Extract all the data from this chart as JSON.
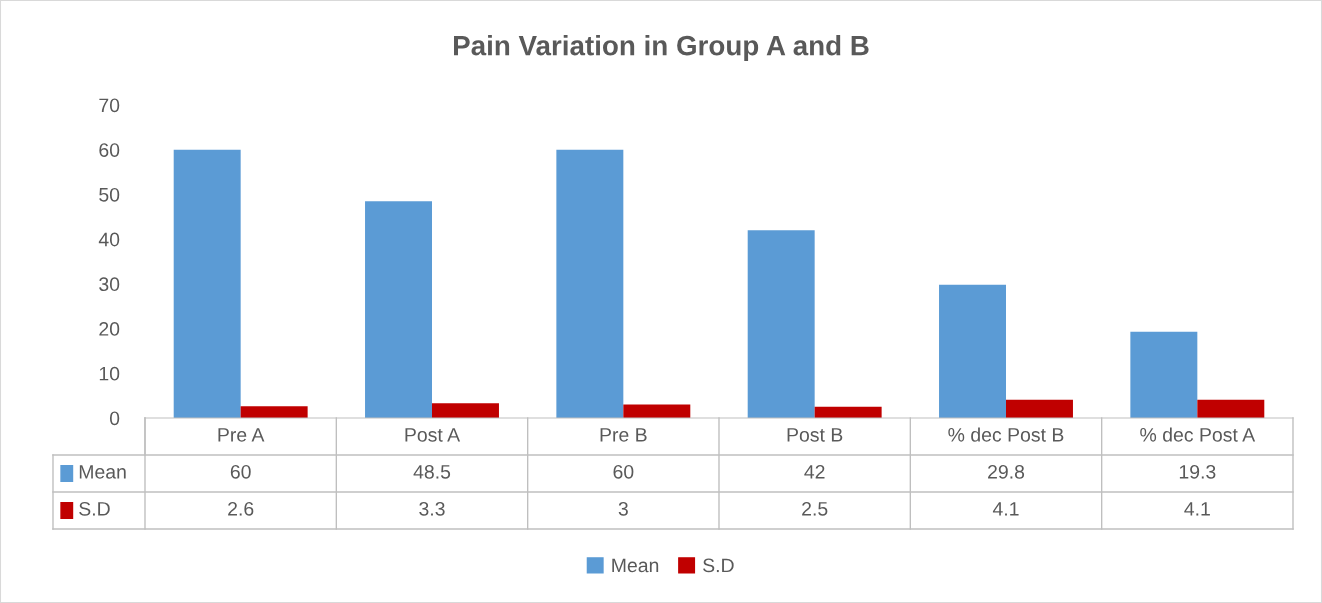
{
  "chart_data": {
    "type": "bar",
    "title": "Pain Variation in Group A and B",
    "categories": [
      "Pre A",
      "Post A",
      "Pre B",
      "Post B",
      "% dec Post B",
      "% dec Post A"
    ],
    "series": [
      {
        "name": "Mean",
        "color": "#5b9bd5",
        "values": [
          60,
          48.5,
          60,
          42,
          29.8,
          19.3
        ]
      },
      {
        "name": "S.D",
        "color": "#c00000",
        "values": [
          2.6,
          3.3,
          3,
          2.5,
          4.1,
          4.1
        ]
      }
    ],
    "ylim": [
      0,
      70
    ],
    "yticks": [
      0,
      10,
      20,
      30,
      40,
      50,
      60,
      70
    ],
    "grid": false,
    "legend": "bottom",
    "data_labels": true
  }
}
